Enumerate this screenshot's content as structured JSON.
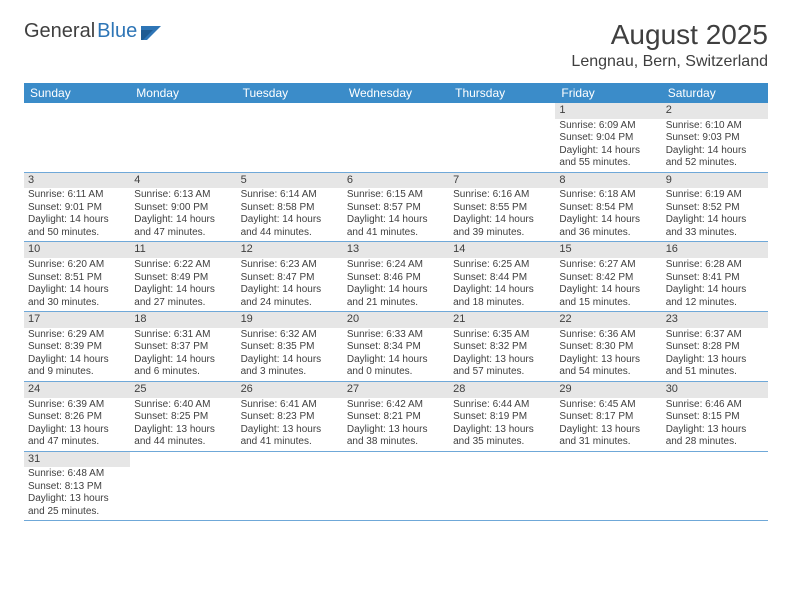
{
  "logo": {
    "text1": "General",
    "text2": "Blue"
  },
  "header": {
    "month": "August 2025",
    "location": "Lengnau, Bern, Switzerland"
  },
  "colors": {
    "header_bg": "#3b8cc9",
    "header_text": "#ffffff",
    "daynum_bg": "#e6e6e6",
    "border": "#6fa8d8",
    "text": "#3f3f3f",
    "logo_blue": "#2e75b6"
  },
  "days_of_week": [
    "Sunday",
    "Monday",
    "Tuesday",
    "Wednesday",
    "Thursday",
    "Friday",
    "Saturday"
  ],
  "weeks": [
    [
      null,
      null,
      null,
      null,
      null,
      {
        "n": "1",
        "sr": "Sunrise: 6:09 AM",
        "ss": "Sunset: 9:04 PM",
        "dl": "Daylight: 14 hours and 55 minutes."
      },
      {
        "n": "2",
        "sr": "Sunrise: 6:10 AM",
        "ss": "Sunset: 9:03 PM",
        "dl": "Daylight: 14 hours and 52 minutes."
      }
    ],
    [
      {
        "n": "3",
        "sr": "Sunrise: 6:11 AM",
        "ss": "Sunset: 9:01 PM",
        "dl": "Daylight: 14 hours and 50 minutes."
      },
      {
        "n": "4",
        "sr": "Sunrise: 6:13 AM",
        "ss": "Sunset: 9:00 PM",
        "dl": "Daylight: 14 hours and 47 minutes."
      },
      {
        "n": "5",
        "sr": "Sunrise: 6:14 AM",
        "ss": "Sunset: 8:58 PM",
        "dl": "Daylight: 14 hours and 44 minutes."
      },
      {
        "n": "6",
        "sr": "Sunrise: 6:15 AM",
        "ss": "Sunset: 8:57 PM",
        "dl": "Daylight: 14 hours and 41 minutes."
      },
      {
        "n": "7",
        "sr": "Sunrise: 6:16 AM",
        "ss": "Sunset: 8:55 PM",
        "dl": "Daylight: 14 hours and 39 minutes."
      },
      {
        "n": "8",
        "sr": "Sunrise: 6:18 AM",
        "ss": "Sunset: 8:54 PM",
        "dl": "Daylight: 14 hours and 36 minutes."
      },
      {
        "n": "9",
        "sr": "Sunrise: 6:19 AM",
        "ss": "Sunset: 8:52 PM",
        "dl": "Daylight: 14 hours and 33 minutes."
      }
    ],
    [
      {
        "n": "10",
        "sr": "Sunrise: 6:20 AM",
        "ss": "Sunset: 8:51 PM",
        "dl": "Daylight: 14 hours and 30 minutes."
      },
      {
        "n": "11",
        "sr": "Sunrise: 6:22 AM",
        "ss": "Sunset: 8:49 PM",
        "dl": "Daylight: 14 hours and 27 minutes."
      },
      {
        "n": "12",
        "sr": "Sunrise: 6:23 AM",
        "ss": "Sunset: 8:47 PM",
        "dl": "Daylight: 14 hours and 24 minutes."
      },
      {
        "n": "13",
        "sr": "Sunrise: 6:24 AM",
        "ss": "Sunset: 8:46 PM",
        "dl": "Daylight: 14 hours and 21 minutes."
      },
      {
        "n": "14",
        "sr": "Sunrise: 6:25 AM",
        "ss": "Sunset: 8:44 PM",
        "dl": "Daylight: 14 hours and 18 minutes."
      },
      {
        "n": "15",
        "sr": "Sunrise: 6:27 AM",
        "ss": "Sunset: 8:42 PM",
        "dl": "Daylight: 14 hours and 15 minutes."
      },
      {
        "n": "16",
        "sr": "Sunrise: 6:28 AM",
        "ss": "Sunset: 8:41 PM",
        "dl": "Daylight: 14 hours and 12 minutes."
      }
    ],
    [
      {
        "n": "17",
        "sr": "Sunrise: 6:29 AM",
        "ss": "Sunset: 8:39 PM",
        "dl": "Daylight: 14 hours and 9 minutes."
      },
      {
        "n": "18",
        "sr": "Sunrise: 6:31 AM",
        "ss": "Sunset: 8:37 PM",
        "dl": "Daylight: 14 hours and 6 minutes."
      },
      {
        "n": "19",
        "sr": "Sunrise: 6:32 AM",
        "ss": "Sunset: 8:35 PM",
        "dl": "Daylight: 14 hours and 3 minutes."
      },
      {
        "n": "20",
        "sr": "Sunrise: 6:33 AM",
        "ss": "Sunset: 8:34 PM",
        "dl": "Daylight: 14 hours and 0 minutes."
      },
      {
        "n": "21",
        "sr": "Sunrise: 6:35 AM",
        "ss": "Sunset: 8:32 PM",
        "dl": "Daylight: 13 hours and 57 minutes."
      },
      {
        "n": "22",
        "sr": "Sunrise: 6:36 AM",
        "ss": "Sunset: 8:30 PM",
        "dl": "Daylight: 13 hours and 54 minutes."
      },
      {
        "n": "23",
        "sr": "Sunrise: 6:37 AM",
        "ss": "Sunset: 8:28 PM",
        "dl": "Daylight: 13 hours and 51 minutes."
      }
    ],
    [
      {
        "n": "24",
        "sr": "Sunrise: 6:39 AM",
        "ss": "Sunset: 8:26 PM",
        "dl": "Daylight: 13 hours and 47 minutes."
      },
      {
        "n": "25",
        "sr": "Sunrise: 6:40 AM",
        "ss": "Sunset: 8:25 PM",
        "dl": "Daylight: 13 hours and 44 minutes."
      },
      {
        "n": "26",
        "sr": "Sunrise: 6:41 AM",
        "ss": "Sunset: 8:23 PM",
        "dl": "Daylight: 13 hours and 41 minutes."
      },
      {
        "n": "27",
        "sr": "Sunrise: 6:42 AM",
        "ss": "Sunset: 8:21 PM",
        "dl": "Daylight: 13 hours and 38 minutes."
      },
      {
        "n": "28",
        "sr": "Sunrise: 6:44 AM",
        "ss": "Sunset: 8:19 PM",
        "dl": "Daylight: 13 hours and 35 minutes."
      },
      {
        "n": "29",
        "sr": "Sunrise: 6:45 AM",
        "ss": "Sunset: 8:17 PM",
        "dl": "Daylight: 13 hours and 31 minutes."
      },
      {
        "n": "30",
        "sr": "Sunrise: 6:46 AM",
        "ss": "Sunset: 8:15 PM",
        "dl": "Daylight: 13 hours and 28 minutes."
      }
    ],
    [
      {
        "n": "31",
        "sr": "Sunrise: 6:48 AM",
        "ss": "Sunset: 8:13 PM",
        "dl": "Daylight: 13 hours and 25 minutes."
      },
      null,
      null,
      null,
      null,
      null,
      null
    ]
  ]
}
